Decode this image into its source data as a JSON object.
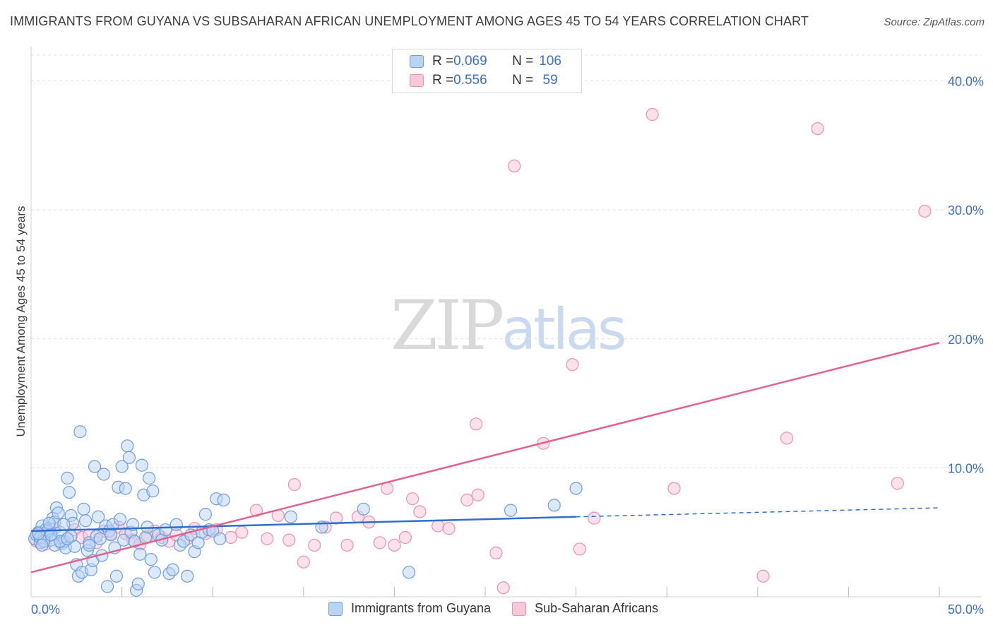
{
  "title": "IMMIGRANTS FROM GUYANA VS SUBSAHARAN AFRICAN UNEMPLOYMENT AMONG AGES 45 TO 54 YEARS CORRELATION CHART",
  "source": "Source: ZipAtlas.com",
  "watermark": {
    "part1": "ZIP",
    "part2": "atlas"
  },
  "colors": {
    "blue_fill": "#b9d3f3",
    "blue_stroke": "#6e9de0",
    "blue_line": "#2e6fcb",
    "pink_fill": "#f8c8d8",
    "pink_stroke": "#ea91b1",
    "pink_line": "#e2618f",
    "axis_label": "#3a6fc4"
  },
  "legend_top": [
    {
      "r_label": "R = ",
      "r_value": "0.069",
      "n_label": "N = ",
      "n_value": "106"
    },
    {
      "r_label": "R = ",
      "r_value": "0.556",
      "n_label": "N = ",
      "n_value": " 59"
    }
  ],
  "legend_bottom": [
    {
      "label": "Immigrants from Guyana"
    },
    {
      "label": "Sub-Saharan Africans"
    }
  ],
  "chart_data": {
    "type": "scatter",
    "title": "IMMIGRANTS FROM GUYANA VS SUBSAHARAN AFRICAN UNEMPLOYMENT AMONG AGES 45 TO 54 YEARS CORRELATION CHART",
    "xlabel": "",
    "ylabel": "Unemployment Among Ages 45 to 54 years",
    "xlim": [
      0,
      50
    ],
    "ylim": [
      0,
      42
    ],
    "x_tick_labels": [
      "0.0%",
      "50.0%"
    ],
    "y_ticks": [
      10,
      20,
      30,
      40
    ],
    "y_tick_labels": [
      "10.0%",
      "20.0%",
      "30.0%",
      "40.0%"
    ],
    "grid": true,
    "series": [
      {
        "name": "Immigrants from Guyana",
        "R": 0.069,
        "N": 106,
        "trend": {
          "x0": 0,
          "y0": 5.1,
          "x1": 30,
          "y1": 6.2,
          "dash_to_x": 50,
          "dash_to_y": 6.9
        },
        "points": [
          [
            0.2,
            4.5
          ],
          [
            0.3,
            4.8
          ],
          [
            0.4,
            5.0
          ],
          [
            0.5,
            4.2
          ],
          [
            0.6,
            5.5
          ],
          [
            0.7,
            4.6
          ],
          [
            0.8,
            5.2
          ],
          [
            0.9,
            4.9
          ],
          [
            1.0,
            5.3
          ],
          [
            1.1,
            4.4
          ],
          [
            1.2,
            6.1
          ],
          [
            1.3,
            5.8
          ],
          [
            1.4,
            6.9
          ],
          [
            1.5,
            6.5
          ],
          [
            1.6,
            5.0
          ],
          [
            1.7,
            4.1
          ],
          [
            1.8,
            4.3
          ],
          [
            1.9,
            3.8
          ],
          [
            2.0,
            9.2
          ],
          [
            2.1,
            8.1
          ],
          [
            2.2,
            6.3
          ],
          [
            2.3,
            5.7
          ],
          [
            2.4,
            3.9
          ],
          [
            2.5,
            2.5
          ],
          [
            2.6,
            1.6
          ],
          [
            2.7,
            12.8
          ],
          [
            2.8,
            1.9
          ],
          [
            2.9,
            6.8
          ],
          [
            3.0,
            5.9
          ],
          [
            3.1,
            3.6
          ],
          [
            3.2,
            4.2
          ],
          [
            3.3,
            2.1
          ],
          [
            3.4,
            2.8
          ],
          [
            3.5,
            10.1
          ],
          [
            3.6,
            4.7
          ],
          [
            3.7,
            6.2
          ],
          [
            3.8,
            4.5
          ],
          [
            3.9,
            3.2
          ],
          [
            4.0,
            9.5
          ],
          [
            4.1,
            5.5
          ],
          [
            4.2,
            0.8
          ],
          [
            4.3,
            5.1
          ],
          [
            4.4,
            4.8
          ],
          [
            4.5,
            5.6
          ],
          [
            4.6,
            3.8
          ],
          [
            4.7,
            1.6
          ],
          [
            4.8,
            8.5
          ],
          [
            4.9,
            6.0
          ],
          [
            5.0,
            10.1
          ],
          [
            5.1,
            4.4
          ],
          [
            5.2,
            8.4
          ],
          [
            5.3,
            11.7
          ],
          [
            5.4,
            10.8
          ],
          [
            5.5,
            5.0
          ],
          [
            5.6,
            5.6
          ],
          [
            5.7,
            4.3
          ],
          [
            5.8,
            0.5
          ],
          [
            5.9,
            1.0
          ],
          [
            6.0,
            3.3
          ],
          [
            6.1,
            10.2
          ],
          [
            6.2,
            7.9
          ],
          [
            6.3,
            4.6
          ],
          [
            6.4,
            5.4
          ],
          [
            6.5,
            9.2
          ],
          [
            6.6,
            2.9
          ],
          [
            6.7,
            8.2
          ],
          [
            6.8,
            1.9
          ],
          [
            7.0,
            4.8
          ],
          [
            7.2,
            4.4
          ],
          [
            7.4,
            5.2
          ],
          [
            7.6,
            1.8
          ],
          [
            7.8,
            2.1
          ],
          [
            8.0,
            5.6
          ],
          [
            8.2,
            4.0
          ],
          [
            8.4,
            4.3
          ],
          [
            8.6,
            1.6
          ],
          [
            8.8,
            4.8
          ],
          [
            9.0,
            3.5
          ],
          [
            9.2,
            4.2
          ],
          [
            9.4,
            5.0
          ],
          [
            9.6,
            6.4
          ],
          [
            9.8,
            5.2
          ],
          [
            10.0,
            5.1
          ],
          [
            10.2,
            7.6
          ],
          [
            10.4,
            4.5
          ],
          [
            10.6,
            7.5
          ],
          [
            0.5,
            4.6
          ],
          [
            0.9,
            5.1
          ],
          [
            1.3,
            4.0
          ],
          [
            1.8,
            5.6
          ],
          [
            2.2,
            4.7
          ],
          [
            0.7,
            4.3
          ],
          [
            1.0,
            5.7
          ],
          [
            1.6,
            4.3
          ],
          [
            0.4,
            4.9
          ],
          [
            14.3,
            6.2
          ],
          [
            16.0,
            5.4
          ],
          [
            18.3,
            6.8
          ],
          [
            20.8,
            1.9
          ],
          [
            26.4,
            6.7
          ],
          [
            28.8,
            7.1
          ],
          [
            30.0,
            8.4
          ],
          [
            0.6,
            4.0
          ],
          [
            1.1,
            4.8
          ],
          [
            2.0,
            4.5
          ],
          [
            3.2,
            4.0
          ]
        ]
      },
      {
        "name": "Sub-Saharan Africans",
        "R": 0.556,
        "N": 59,
        "trend": {
          "x0": 0,
          "y0": 1.9,
          "x1": 50,
          "y1": 19.7
        },
        "points": [
          [
            0.3,
            4.3
          ],
          [
            0.5,
            4.6
          ],
          [
            0.8,
            4.1
          ],
          [
            1.0,
            5.0
          ],
          [
            1.3,
            5.3
          ],
          [
            1.6,
            4.2
          ],
          [
            2.0,
            4.5
          ],
          [
            2.4,
            5.2
          ],
          [
            2.8,
            4.6
          ],
          [
            3.2,
            4.8
          ],
          [
            3.6,
            4.2
          ],
          [
            4.0,
            5.1
          ],
          [
            4.4,
            4.9
          ],
          [
            4.8,
            5.4
          ],
          [
            5.2,
            4.9
          ],
          [
            5.6,
            4.4
          ],
          [
            6.0,
            4.1
          ],
          [
            6.4,
            4.7
          ],
          [
            6.8,
            5.1
          ],
          [
            7.2,
            4.6
          ],
          [
            7.6,
            4.3
          ],
          [
            8.0,
            4.8
          ],
          [
            8.6,
            4.5
          ],
          [
            9.0,
            5.3
          ],
          [
            9.6,
            4.9
          ],
          [
            10.2,
            5.2
          ],
          [
            11.0,
            4.6
          ],
          [
            11.6,
            5.0
          ],
          [
            12.4,
            6.7
          ],
          [
            13.0,
            4.5
          ],
          [
            13.6,
            6.3
          ],
          [
            14.2,
            4.4
          ],
          [
            14.5,
            8.7
          ],
          [
            15.0,
            2.7
          ],
          [
            15.6,
            4.0
          ],
          [
            16.2,
            5.4
          ],
          [
            16.8,
            6.1
          ],
          [
            17.4,
            4.0
          ],
          [
            18.0,
            6.2
          ],
          [
            18.6,
            5.8
          ],
          [
            19.2,
            4.2
          ],
          [
            19.6,
            8.4
          ],
          [
            20.0,
            4.0
          ],
          [
            20.6,
            4.6
          ],
          [
            21.0,
            7.6
          ],
          [
            21.4,
            6.6
          ],
          [
            22.4,
            5.5
          ],
          [
            23.0,
            5.3
          ],
          [
            24.0,
            7.5
          ],
          [
            24.6,
            7.9
          ],
          [
            25.6,
            3.4
          ],
          [
            26.0,
            0.7
          ],
          [
            26.6,
            33.4
          ],
          [
            24.5,
            13.4
          ],
          [
            28.2,
            11.9
          ],
          [
            30.2,
            3.7
          ],
          [
            31.0,
            6.1
          ],
          [
            34.2,
            37.4
          ],
          [
            35.4,
            8.4
          ]
        ],
        "points_extra": [
          [
            29.8,
            18.0
          ],
          [
            40.3,
            1.6
          ],
          [
            41.6,
            12.3
          ],
          [
            43.3,
            36.3
          ],
          [
            47.7,
            8.8
          ],
          [
            49.2,
            29.9
          ]
        ]
      }
    ]
  }
}
